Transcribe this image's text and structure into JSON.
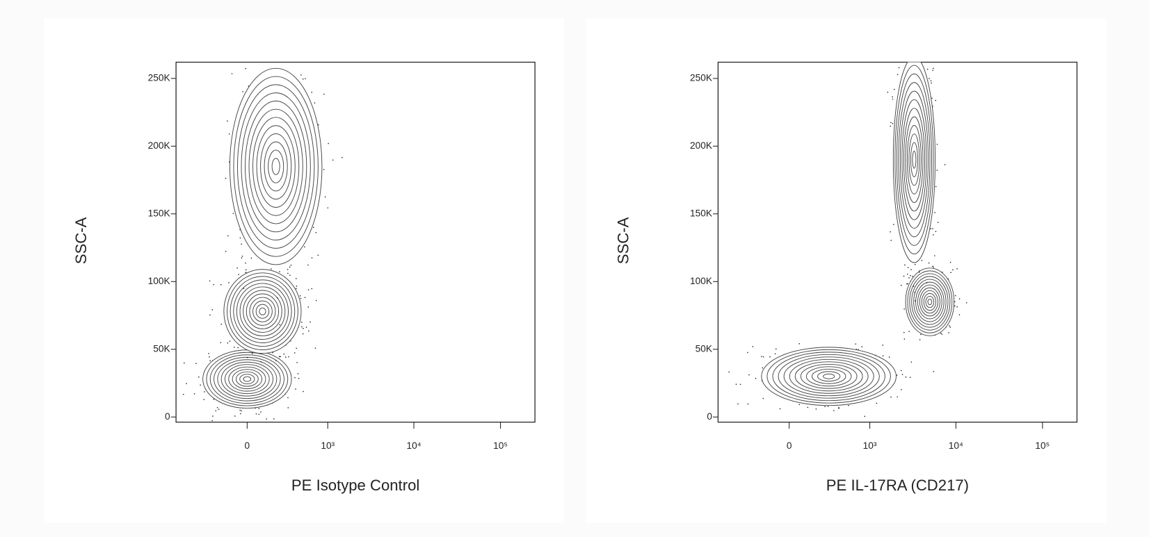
{
  "chart_data": [
    {
      "type": "contour",
      "xlabel": "PE Isotype Control",
      "ylabel": "SSC-A",
      "xscale": "biexponential",
      "color": "#444444",
      "xlim": [
        -770,
        250000
      ],
      "ylim": [
        -3800,
        262000
      ],
      "xticks": [
        0,
        {
          "value": 1000,
          "label": "10³"
        },
        {
          "value": 10000,
          "label": "10⁴"
        },
        {
          "value": 100000,
          "label": "10⁵"
        }
      ],
      "yticks": [
        0,
        {
          "value": 50000,
          "label": "50K"
        },
        {
          "value": 100000,
          "label": "100K"
        },
        {
          "value": 150000,
          "label": "150K"
        },
        {
          "value": 200000,
          "label": "200K"
        },
        {
          "value": 250000,
          "label": "250K"
        }
      ],
      "populations": [
        {
          "x": 0,
          "y": 28000,
          "x_range": [
            -350,
            350
          ],
          "y_range": [
            12000,
            55000
          ]
        },
        {
          "x": 100,
          "y": 78000,
          "x_range": [
            -200,
            400
          ],
          "y_range": [
            50000,
            112000
          ]
        },
        {
          "x": 200,
          "y": 185000,
          "x_range": [
            -100,
            900
          ],
          "y_range": [
            110000,
            255000
          ]
        }
      ]
    },
    {
      "type": "contour",
      "xlabel": "PE IL-17RA (CD217)",
      "ylabel": "SSC-A",
      "xscale": "biexponential",
      "color": "#444444",
      "xlim": [
        -770,
        250000
      ],
      "ylim": [
        -3800,
        262000
      ],
      "xticks": [
        0,
        {
          "value": 1000,
          "label": "10³"
        },
        {
          "value": 10000,
          "label": "10⁴"
        },
        {
          "value": 100000,
          "label": "10⁵"
        }
      ],
      "yticks": [
        0,
        {
          "value": 50000,
          "label": "50K"
        },
        {
          "value": 100000,
          "label": "100K"
        },
        {
          "value": 150000,
          "label": "150K"
        },
        {
          "value": 200000,
          "label": "200K"
        },
        {
          "value": 250000,
          "label": "250K"
        }
      ],
      "populations": [
        {
          "x": 300,
          "y": 30000,
          "x_range": [
            -250,
            1700
          ],
          "y_range": [
            12000,
            55000
          ]
        },
        {
          "x": 5000,
          "y": 85000,
          "x_range": [
            2200,
            8000
          ],
          "y_range": [
            60000,
            110000
          ]
        },
        {
          "x": 3300,
          "y": 190000,
          "x_range": [
            1800,
            5500
          ],
          "y_range": [
            108000,
            260000
          ]
        }
      ]
    }
  ]
}
